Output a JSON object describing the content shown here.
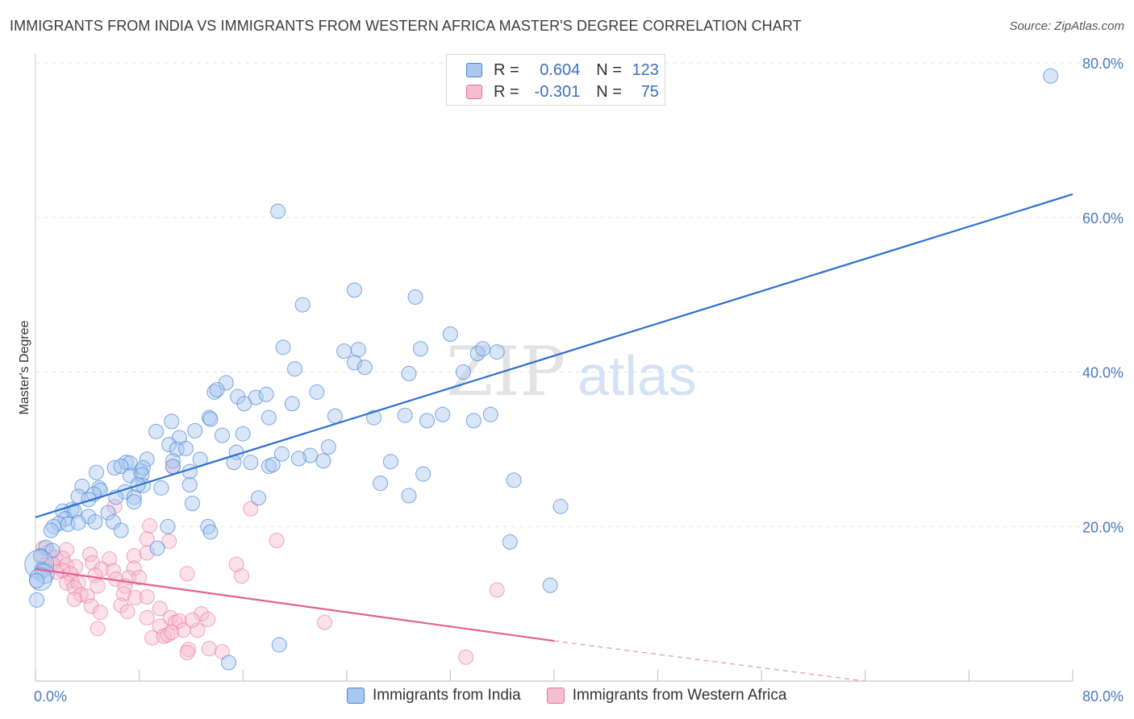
{
  "title": "IMMIGRANTS FROM INDIA VS IMMIGRANTS FROM WESTERN AFRICA MASTER'S DEGREE CORRELATION CHART",
  "source": "Source: ZipAtlas.com",
  "watermark": {
    "zip": "ZIP",
    "atlas": "atlas"
  },
  "legend": {
    "r_label": "R =",
    "n_label": "N =",
    "rows": [
      {
        "r": "0.604",
        "n": "123"
      },
      {
        "r": "-0.301",
        "n": "75"
      }
    ]
  },
  "colors": {
    "india": "#4a86d8",
    "india_fill": "#a9c8ef",
    "wafrica": "#e8729a",
    "wafrica_fill": "#f6bdd0"
  },
  "chart_data": {
    "type": "scatter",
    "title": "IMMIGRANTS FROM INDIA VS IMMIGRANTS FROM WESTERN AFRICA MASTER'S DEGREE CORRELATION CHART",
    "xlabel": "",
    "ylabel": "Master's Degree",
    "xlim": [
      0,
      80
    ],
    "ylim": [
      0,
      80
    ],
    "x_tick_labels": [
      "0.0%",
      "80.0%"
    ],
    "y_ticks": [
      20,
      40,
      60,
      80
    ],
    "y_tick_labels": [
      "20.0%",
      "40.0%",
      "60.0%",
      "80.0%"
    ],
    "grid": true,
    "legend_position": "top-center",
    "series": [
      {
        "name": "Immigrants from India",
        "r": 0.604,
        "n": 123,
        "trend": {
          "x0": 0,
          "y0": 21.2,
          "x1": 80,
          "y1": 63.0
        },
        "points": [
          [
            78.3,
            78.3
          ],
          [
            18.7,
            60.8
          ],
          [
            24.6,
            50.6
          ],
          [
            29.3,
            49.7
          ],
          [
            20.6,
            48.7
          ],
          [
            32.0,
            44.9
          ],
          [
            19.1,
            43.2
          ],
          [
            23.8,
            42.7
          ],
          [
            24.9,
            42.9
          ],
          [
            29.7,
            43.0
          ],
          [
            34.1,
            42.4
          ],
          [
            35.6,
            42.6
          ],
          [
            24.6,
            41.2
          ],
          [
            25.4,
            40.6
          ],
          [
            20.0,
            40.4
          ],
          [
            28.8,
            39.8
          ],
          [
            33.0,
            40.0
          ],
          [
            14.7,
            38.6
          ],
          [
            13.8,
            37.4
          ],
          [
            14.0,
            37.7
          ],
          [
            21.7,
            37.4
          ],
          [
            15.6,
            36.8
          ],
          [
            17.0,
            36.7
          ],
          [
            17.8,
            37.1
          ],
          [
            16.1,
            35.9
          ],
          [
            19.8,
            35.9
          ],
          [
            23.1,
            34.3
          ],
          [
            28.5,
            34.4
          ],
          [
            31.4,
            34.5
          ],
          [
            35.1,
            34.5
          ],
          [
            26.1,
            34.1
          ],
          [
            33.8,
            33.7
          ],
          [
            18.0,
            34.1
          ],
          [
            13.4,
            34.1
          ],
          [
            10.5,
            33.6
          ],
          [
            13.5,
            33.9
          ],
          [
            9.3,
            32.3
          ],
          [
            12.3,
            32.4
          ],
          [
            11.1,
            31.5
          ],
          [
            14.4,
            31.8
          ],
          [
            16.0,
            32.0
          ],
          [
            10.3,
            30.6
          ],
          [
            10.9,
            30.0
          ],
          [
            11.6,
            30.1
          ],
          [
            22.6,
            30.3
          ],
          [
            15.5,
            29.6
          ],
          [
            19.0,
            29.4
          ],
          [
            21.2,
            29.2
          ],
          [
            20.3,
            28.8
          ],
          [
            8.6,
            28.7
          ],
          [
            10.6,
            28.5
          ],
          [
            12.7,
            28.7
          ],
          [
            15.3,
            28.3
          ],
          [
            16.6,
            28.3
          ],
          [
            22.2,
            28.5
          ],
          [
            18.0,
            27.8
          ],
          [
            18.3,
            28.0
          ],
          [
            8.1,
            27.2
          ],
          [
            10.6,
            27.8
          ],
          [
            11.9,
            27.1
          ],
          [
            6.1,
            27.6
          ],
          [
            7.0,
            28.3
          ],
          [
            7.3,
            28.2
          ],
          [
            6.6,
            27.8
          ],
          [
            8.3,
            27.6
          ],
          [
            4.7,
            27.0
          ],
          [
            7.3,
            26.6
          ],
          [
            8.2,
            26.7
          ],
          [
            27.4,
            28.4
          ],
          [
            29.9,
            26.8
          ],
          [
            26.6,
            25.6
          ],
          [
            4.9,
            25.0
          ],
          [
            5.0,
            24.7
          ],
          [
            6.9,
            24.5
          ],
          [
            8.3,
            25.3
          ],
          [
            7.9,
            25.4
          ],
          [
            9.7,
            25.0
          ],
          [
            11.9,
            25.4
          ],
          [
            3.6,
            25.2
          ],
          [
            4.5,
            24.2
          ],
          [
            3.3,
            23.9
          ],
          [
            4.1,
            23.5
          ],
          [
            6.2,
            23.8
          ],
          [
            7.6,
            23.8
          ],
          [
            17.2,
            23.7
          ],
          [
            28.8,
            24.0
          ],
          [
            12.1,
            23.0
          ],
          [
            2.8,
            22.2
          ],
          [
            2.1,
            22.0
          ],
          [
            3.0,
            22.0
          ],
          [
            4.1,
            21.3
          ],
          [
            5.6,
            21.8
          ],
          [
            2.3,
            21.0
          ],
          [
            1.8,
            20.4
          ],
          [
            2.5,
            20.3
          ],
          [
            3.3,
            20.5
          ],
          [
            4.6,
            20.6
          ],
          [
            6.0,
            20.6
          ],
          [
            1.4,
            20.0
          ],
          [
            1.2,
            19.5
          ],
          [
            6.6,
            19.5
          ],
          [
            10.2,
            20.0
          ],
          [
            13.3,
            20.0
          ],
          [
            13.5,
            19.3
          ],
          [
            40.5,
            22.6
          ],
          [
            36.9,
            26.0
          ],
          [
            9.4,
            17.2
          ],
          [
            36.6,
            18.0
          ],
          [
            0.8,
            17.3
          ],
          [
            1.3,
            16.9
          ],
          [
            0.4,
            16.2
          ],
          [
            0.3,
            15.1
          ],
          [
            0.5,
            14.4
          ],
          [
            0.7,
            13.9
          ],
          [
            0.4,
            13.2
          ],
          [
            0.1,
            13.0
          ],
          [
            0.1,
            10.5
          ],
          [
            39.7,
            12.4
          ],
          [
            18.8,
            4.7
          ],
          [
            14.9,
            2.4
          ],
          [
            7.6,
            23.2
          ],
          [
            34.5,
            43.0
          ],
          [
            30.2,
            33.7
          ]
        ]
      },
      {
        "name": "Immigrants from Western Africa",
        "r": -0.301,
        "n": 75,
        "trend": {
          "x0": 0,
          "y0": 14.5,
          "x1": 40,
          "y1": 5.2
        },
        "trend_dashed": {
          "x0": 40,
          "y0": 5.2,
          "x1": 64,
          "y1": 0.0
        },
        "points": [
          [
            10.6,
            27.7
          ],
          [
            16.6,
            22.3
          ],
          [
            6.1,
            22.6
          ],
          [
            8.8,
            20.1
          ],
          [
            18.6,
            18.2
          ],
          [
            8.6,
            18.4
          ],
          [
            10.3,
            18.1
          ],
          [
            0.6,
            17.2
          ],
          [
            2.4,
            17.0
          ],
          [
            1.0,
            16.7
          ],
          [
            0.4,
            16.2
          ],
          [
            1.5,
            16.0
          ],
          [
            2.1,
            15.9
          ],
          [
            4.2,
            16.4
          ],
          [
            5.7,
            15.8
          ],
          [
            7.6,
            16.2
          ],
          [
            8.6,
            16.6
          ],
          [
            1.3,
            15.2
          ],
          [
            0.7,
            15.0
          ],
          [
            2.4,
            15.0
          ],
          [
            3.1,
            14.8
          ],
          [
            4.4,
            15.3
          ],
          [
            5.1,
            14.5
          ],
          [
            6.0,
            14.3
          ],
          [
            7.6,
            14.6
          ],
          [
            15.5,
            15.1
          ],
          [
            2.1,
            14.3
          ],
          [
            2.7,
            13.9
          ],
          [
            0.6,
            14.6
          ],
          [
            1.6,
            14.1
          ],
          [
            2.8,
            13.0
          ],
          [
            4.6,
            13.7
          ],
          [
            6.2,
            13.2
          ],
          [
            7.2,
            13.4
          ],
          [
            8.0,
            13.4
          ],
          [
            11.7,
            13.9
          ],
          [
            15.9,
            13.6
          ],
          [
            2.4,
            12.7
          ],
          [
            3.3,
            12.7
          ],
          [
            4.8,
            12.3
          ],
          [
            6.9,
            12.3
          ],
          [
            3.0,
            12.1
          ],
          [
            3.5,
            11.2
          ],
          [
            4.0,
            11.0
          ],
          [
            6.8,
            11.3
          ],
          [
            3.0,
            10.6
          ],
          [
            7.7,
            10.8
          ],
          [
            4.3,
            9.7
          ],
          [
            6.6,
            9.8
          ],
          [
            9.6,
            9.4
          ],
          [
            5.0,
            8.9
          ],
          [
            7.1,
            9.0
          ],
          [
            8.6,
            8.2
          ],
          [
            10.4,
            8.2
          ],
          [
            10.8,
            7.6
          ],
          [
            11.1,
            7.8
          ],
          [
            12.8,
            8.7
          ],
          [
            22.3,
            7.6
          ],
          [
            9.6,
            7.1
          ],
          [
            11.4,
            6.6
          ],
          [
            12.5,
            6.6
          ],
          [
            4.8,
            6.8
          ],
          [
            9.0,
            5.6
          ],
          [
            9.9,
            5.8
          ],
          [
            10.2,
            6.0
          ],
          [
            11.8,
            4.1
          ],
          [
            11.7,
            3.7
          ],
          [
            13.4,
            4.2
          ],
          [
            14.4,
            3.8
          ],
          [
            33.2,
            3.1
          ],
          [
            35.6,
            11.8
          ],
          [
            10.5,
            6.3
          ],
          [
            12.1,
            7.9
          ],
          [
            8.6,
            10.9
          ],
          [
            13.3,
            8.0
          ]
        ]
      }
    ]
  }
}
